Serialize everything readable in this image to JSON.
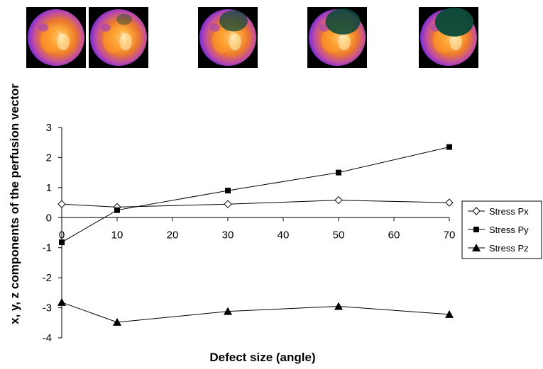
{
  "chart_data": {
    "type": "line",
    "x": [
      0,
      10,
      30,
      50,
      70
    ],
    "xlabel": "Defect size (angle)",
    "ylabel": "x, y, z components of the perfusion vector",
    "ylim": [
      -4,
      3
    ],
    "xlim": [
      0,
      70
    ],
    "x_ticks": [
      0,
      10,
      20,
      30,
      40,
      50,
      60,
      70
    ],
    "y_ticks": [
      3,
      2,
      1,
      0,
      -1,
      -2,
      -3,
      -4
    ],
    "grid": false,
    "legend_position": "right",
    "series": [
      {
        "name": "Stress Px",
        "marker": "diamond-open",
        "values": [
          0.45,
          0.35,
          0.45,
          0.58,
          0.5
        ]
      },
      {
        "name": "Stress Py",
        "marker": "square-filled",
        "values": [
          -0.82,
          0.25,
          0.9,
          1.5,
          2.35
        ]
      },
      {
        "name": "Stress Pz",
        "marker": "triangle-filled",
        "values": [
          -2.82,
          -3.48,
          -3.12,
          -2.95,
          -3.22
        ]
      }
    ]
  },
  "thumbnails": [
    {
      "label": "0",
      "defect": 0
    },
    {
      "label": "10",
      "defect": 0.05
    },
    {
      "label": "30",
      "defect": 0.55
    },
    {
      "label": "50",
      "defect": 0.8
    },
    {
      "label": "70",
      "defect": 0.95
    }
  ],
  "colors": {
    "line": "#000000",
    "background": "#ffffff",
    "thumb_bg": "#000000",
    "perfusion_hot": "#ff9a2a",
    "perfusion_mid": "#e2602a",
    "perfusion_low": "#a23cc8",
    "perfusion_rim": "#7a2cd8",
    "defect": "#0b4a3a"
  }
}
